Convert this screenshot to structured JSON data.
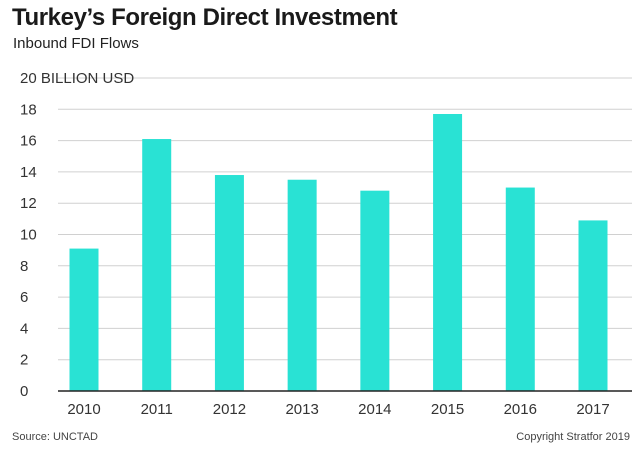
{
  "header": {
    "title": "Turkey’s Foreign Direct Investment",
    "subtitle": "Inbound FDI Flows"
  },
  "footer": {
    "source": "Source: UNCTAD",
    "copyright": "Copyright Stratfor 2019"
  },
  "colors": {
    "bar": "#29e2d4",
    "grid": "#d0d0d0",
    "axis": "#222222"
  },
  "chart_data": {
    "type": "bar",
    "title": "Turkey’s Foreign Direct Investment",
    "subtitle": "Inbound FDI Flows",
    "categories": [
      "2010",
      "2011",
      "2012",
      "2013",
      "2014",
      "2015",
      "2016",
      "2017"
    ],
    "values": [
      9.1,
      16.1,
      13.8,
      13.5,
      12.8,
      17.7,
      13.0,
      10.9
    ],
    "ylabel": "BILLION USD",
    "ylim": [
      0,
      20
    ],
    "yticks": [
      0,
      2,
      4,
      6,
      8,
      10,
      12,
      14,
      16,
      18,
      20
    ],
    "yticks_labels": [
      "0",
      "2",
      "4",
      "6",
      "8",
      "10",
      "12",
      "14",
      "16",
      "18",
      "20 BILLION USD"
    ],
    "grid": true
  }
}
